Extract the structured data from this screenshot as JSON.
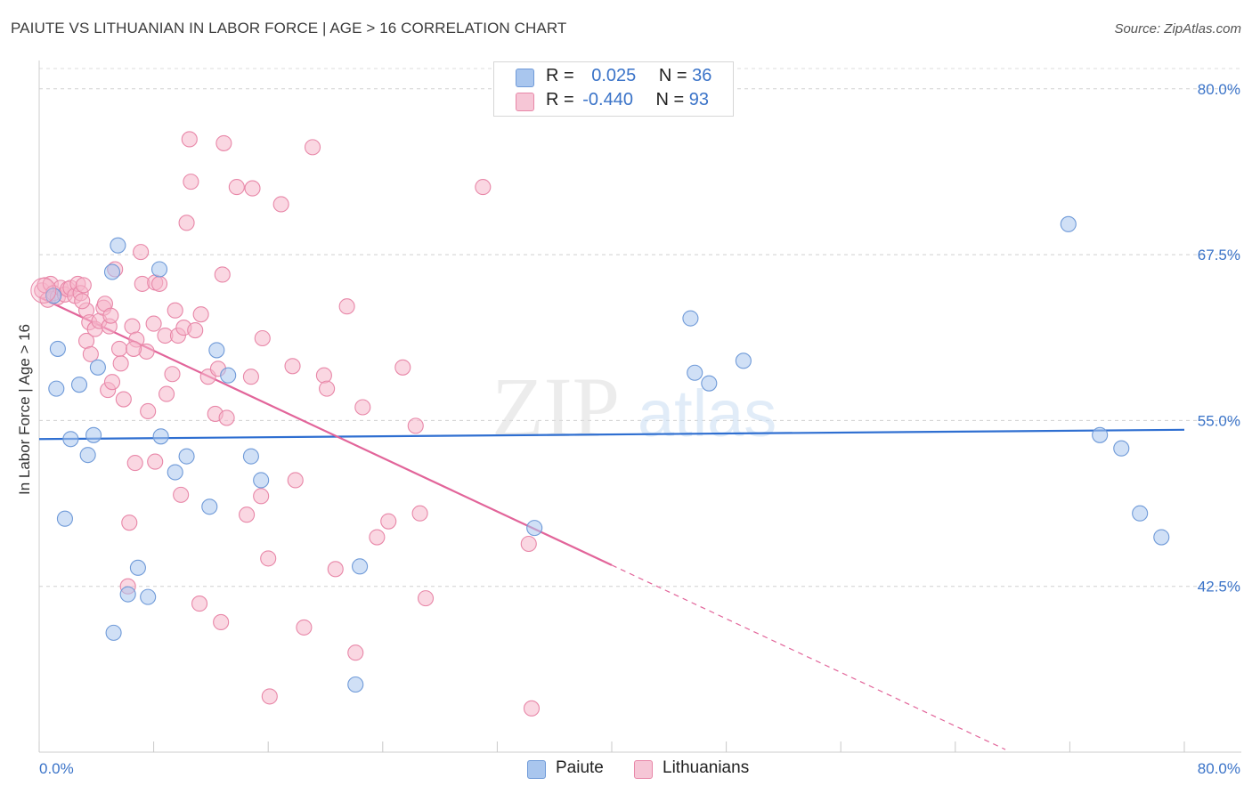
{
  "title": "PAIUTE VS LITHUANIAN IN LABOR FORCE | AGE > 16 CORRELATION CHART",
  "source": "Source: ZipAtlas.com",
  "watermark": {
    "zip": "ZIP",
    "atlas": "atlas"
  },
  "legend": {
    "rows": [
      {
        "r_label": "R =",
        "r_value": "0.025",
        "n_label": "N =",
        "n_value": "36"
      },
      {
        "r_label": "R =",
        "r_value": "-0.440",
        "n_label": "N =",
        "n_value": "93"
      }
    ]
  },
  "bottom_legend": {
    "paiute": "Paiute",
    "lithuanians": "Lithuanians"
  },
  "colors": {
    "paiute_fill": "#a9c6ee",
    "paiute_stroke": "#6f9ad8",
    "paiute_line": "#2f6fd1",
    "lith_fill": "#f6b6cb",
    "lith_stroke": "#e887a8",
    "lith_line": "#e2659a",
    "tick_label": "#3a73c8",
    "grid": "#d0d0d0"
  },
  "chart_data": {
    "type": "scatter",
    "title": "PAIUTE VS LITHUANIAN IN LABOR FORCE | AGE > 16 CORRELATION CHART",
    "xlabel": "",
    "ylabel": "In Labor Force | Age > 16",
    "xlim": [
      0,
      80
    ],
    "ylim": [
      30,
      82
    ],
    "x_tick_labels": [
      "0.0%",
      "80.0%"
    ],
    "y_ticks": [
      42.5,
      55.0,
      67.5,
      80.0
    ],
    "y_tick_labels": [
      "42.5%",
      "55.0%",
      "67.5%",
      "80.0%"
    ],
    "series": [
      {
        "name": "Paiute",
        "r": 0.025,
        "n": 36,
        "trend": {
          "x": [
            0,
            80
          ],
          "y": [
            53.6,
            54.3
          ]
        },
        "points": [
          [
            1.2,
            57.4
          ],
          [
            1.3,
            60.4
          ],
          [
            1.8,
            47.6
          ],
          [
            2.2,
            53.6
          ],
          [
            2.8,
            57.7
          ],
          [
            3.4,
            52.4
          ],
          [
            3.8,
            53.9
          ],
          [
            4.1,
            59.0
          ],
          [
            5.1,
            66.2
          ],
          [
            5.2,
            39.0
          ],
          [
            5.5,
            68.2
          ],
          [
            6.2,
            41.9
          ],
          [
            6.9,
            43.9
          ],
          [
            7.6,
            41.7
          ],
          [
            8.4,
            66.4
          ],
          [
            8.5,
            53.8
          ],
          [
            9.5,
            51.1
          ],
          [
            10.3,
            52.3
          ],
          [
            11.9,
            48.5
          ],
          [
            12.4,
            60.3
          ],
          [
            13.2,
            58.4
          ],
          [
            14.8,
            52.3
          ],
          [
            15.5,
            50.5
          ],
          [
            22.1,
            35.1
          ],
          [
            22.4,
            44.0
          ],
          [
            34.6,
            46.9
          ],
          [
            45.5,
            62.7
          ],
          [
            45.8,
            58.6
          ],
          [
            46.8,
            57.8
          ],
          [
            49.2,
            59.5
          ],
          [
            71.9,
            69.8
          ],
          [
            74.1,
            53.9
          ],
          [
            75.6,
            52.9
          ],
          [
            76.9,
            48.0
          ],
          [
            78.4,
            46.2
          ],
          [
            1.0,
            64.4
          ]
        ]
      },
      {
        "name": "Lithuanians",
        "r": -0.44,
        "n": 93,
        "trend": {
          "x": [
            0,
            40
          ],
          "y": [
            64.3,
            44.1
          ]
        },
        "trend_extrapolated": {
          "x": [
            40,
            67.5
          ],
          "y": [
            44.1,
            30.2
          ]
        },
        "points": [
          [
            0.2,
            64.8
          ],
          [
            0.4,
            65.2
          ],
          [
            0.6,
            64.1
          ],
          [
            0.8,
            65.3
          ],
          [
            1.0,
            64.6
          ],
          [
            1.3,
            64.3
          ],
          [
            1.5,
            65.0
          ],
          [
            1.8,
            64.5
          ],
          [
            2.0,
            64.9
          ],
          [
            2.2,
            65.0
          ],
          [
            2.5,
            64.4
          ],
          [
            2.7,
            65.3
          ],
          [
            2.9,
            64.6
          ],
          [
            3.1,
            65.2
          ],
          [
            3.3,
            63.3
          ],
          [
            3.5,
            62.4
          ],
          [
            3.3,
            61.0
          ],
          [
            3.6,
            60.0
          ],
          [
            3.9,
            61.9
          ],
          [
            4.2,
            62.5
          ],
          [
            4.5,
            63.5
          ],
          [
            4.6,
            63.8
          ],
          [
            4.8,
            57.3
          ],
          [
            4.9,
            62.1
          ],
          [
            5.0,
            62.9
          ],
          [
            5.3,
            66.4
          ],
          [
            5.1,
            57.9
          ],
          [
            5.6,
            60.4
          ],
          [
            5.7,
            59.3
          ],
          [
            5.9,
            56.6
          ],
          [
            6.3,
            47.3
          ],
          [
            6.2,
            42.5
          ],
          [
            6.5,
            62.1
          ],
          [
            6.7,
            51.8
          ],
          [
            6.8,
            61.1
          ],
          [
            7.1,
            67.7
          ],
          [
            7.2,
            65.3
          ],
          [
            7.5,
            60.2
          ],
          [
            7.6,
            55.7
          ],
          [
            8.0,
            62.3
          ],
          [
            8.1,
            51.9
          ],
          [
            8.1,
            65.4
          ],
          [
            8.4,
            65.3
          ],
          [
            8.8,
            61.4
          ],
          [
            8.9,
            57.0
          ],
          [
            9.3,
            58.5
          ],
          [
            9.5,
            63.3
          ],
          [
            9.7,
            61.4
          ],
          [
            9.9,
            49.4
          ],
          [
            10.1,
            62.0
          ],
          [
            10.3,
            69.9
          ],
          [
            10.5,
            76.2
          ],
          [
            10.6,
            73.0
          ],
          [
            10.9,
            61.8
          ],
          [
            11.2,
            41.2
          ],
          [
            11.3,
            63.0
          ],
          [
            11.8,
            58.3
          ],
          [
            12.3,
            55.5
          ],
          [
            12.5,
            58.9
          ],
          [
            12.7,
            39.8
          ],
          [
            12.9,
            75.9
          ],
          [
            13.1,
            55.2
          ],
          [
            13.8,
            72.6
          ],
          [
            14.5,
            47.9
          ],
          [
            14.8,
            58.3
          ],
          [
            14.9,
            72.5
          ],
          [
            15.5,
            49.3
          ],
          [
            15.6,
            61.2
          ],
          [
            16.0,
            44.6
          ],
          [
            16.1,
            34.2
          ],
          [
            16.9,
            71.3
          ],
          [
            17.7,
            59.1
          ],
          [
            17.9,
            50.5
          ],
          [
            18.5,
            39.4
          ],
          [
            19.1,
            75.6
          ],
          [
            19.9,
            58.4
          ],
          [
            20.1,
            57.4
          ],
          [
            20.7,
            43.8
          ],
          [
            21.5,
            63.6
          ],
          [
            22.1,
            37.5
          ],
          [
            22.6,
            56.0
          ],
          [
            23.6,
            46.2
          ],
          [
            24.4,
            47.4
          ],
          [
            25.4,
            59.0
          ],
          [
            26.3,
            54.6
          ],
          [
            26.6,
            48.0
          ],
          [
            27.0,
            41.6
          ],
          [
            31.0,
            72.6
          ],
          [
            34.2,
            45.7
          ],
          [
            34.4,
            33.3
          ],
          [
            12.8,
            66.0
          ],
          [
            6.6,
            60.4
          ],
          [
            3.0,
            64.0
          ]
        ]
      }
    ]
  }
}
